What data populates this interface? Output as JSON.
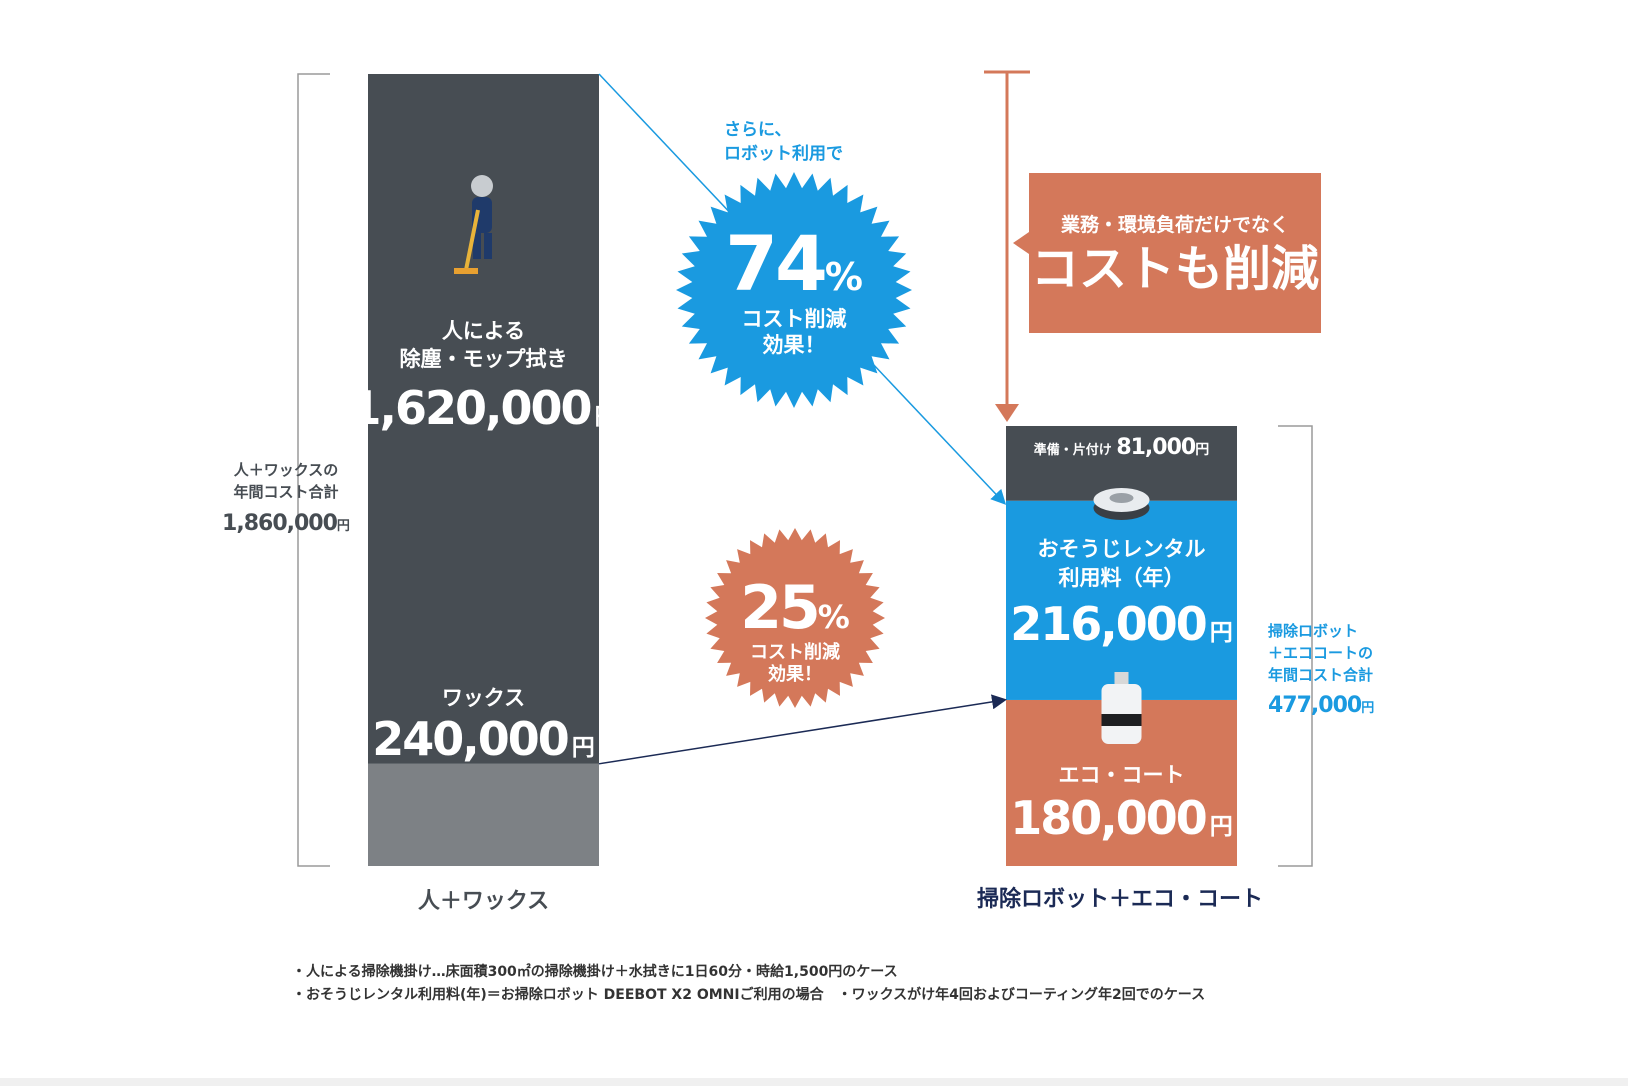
{
  "chart_data": {
    "type": "bar",
    "categories": [
      "人＋ワックス",
      "掃除ロボット＋エコ・コート"
    ],
    "stacks": [
      {
        "category": "人＋ワックス",
        "total": 1860000,
        "total_label": [
          "人＋ワックスの",
          "年間コスト合計"
        ],
        "total_value": "1,860,000",
        "segments": [
          {
            "label_lines": [
              "ワックス"
            ],
            "value": 240000,
            "value_text": "240,000",
            "color": "#7d8185"
          },
          {
            "label_lines": [
              "人による",
              "除塵・モップ拭き"
            ],
            "value": 1620000,
            "value_text": "1,620,000",
            "color": "#474d53"
          }
        ]
      },
      {
        "category": "掃除ロボット＋エコ・コート",
        "total": 477000,
        "total_label": [
          "掃除ロボット",
          "＋エココートの",
          "年間コスト合計"
        ],
        "total_value": "477,000",
        "segments": [
          {
            "label_lines": [
              "エコ・コート"
            ],
            "value": 180000,
            "value_text": "180,000",
            "color": "#d4785a"
          },
          {
            "label_lines": [
              "おそうじレンタル",
              "利用料（年）"
            ],
            "value": 216000,
            "value_text": "216,000",
            "color": "#1a9ae0"
          },
          {
            "label_lines": [
              "準備・片付け"
            ],
            "value": 81000,
            "value_text": "81,000",
            "color": "#474d53"
          }
        ]
      }
    ],
    "yen": "円",
    "annotations": {
      "lead": [
        "さらに、",
        "ロボット利用で"
      ],
      "burst1": {
        "pct": "74",
        "unit": "%",
        "text": [
          "コスト削減",
          "効果！"
        ],
        "color": "#1a9ae0"
      },
      "burst2": {
        "pct": "25",
        "unit": "%",
        "text": [
          "コスト削減",
          "効果！"
        ],
        "color": "#d4785a"
      },
      "callout": {
        "sub": "業務・環境負荷だけでなく",
        "main": "コストも削減",
        "color": "#d4785a"
      }
    },
    "footnotes": [
      "・人による掃除機掛け…床面積300㎡の掃除機掛け＋水拭きに1日60分・時給1,500円のケース",
      "・おそうじレンタル利用料(年)＝お掃除ロボット DEEBOT X2 OMNIご利用の場合　・ワックスがけ年4回およびコーティング年2回でのケース"
    ],
    "icons": [
      "cleaner-person-icon",
      "robot-vacuum-icon",
      "coating-bottle-icon"
    ],
    "colors": {
      "dark": "#474d53",
      "grey": "#7d8185",
      "blue": "#1a9ae0",
      "orange": "#d4785a",
      "navy": "#1b2a55"
    }
  }
}
